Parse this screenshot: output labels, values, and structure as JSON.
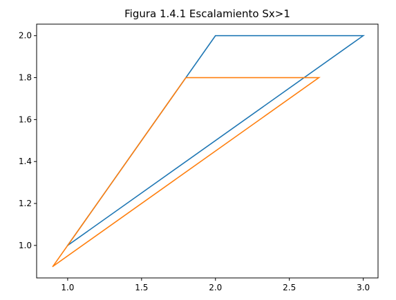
{
  "chart_data": {
    "type": "line",
    "title": "Figura 1.4.1 Escalamiento Sx>1",
    "xlabel": "",
    "ylabel": "",
    "xlim": [
      0.79,
      3.1
    ],
    "ylim": [
      0.845,
      2.055
    ],
    "xticks": [
      1.0,
      1.5,
      2.0,
      2.5,
      3.0
    ],
    "xtick_labels": [
      "1.0",
      "1.5",
      "2.0",
      "2.5",
      "3.0"
    ],
    "yticks": [
      1.0,
      1.2,
      1.4,
      1.6,
      1.8,
      2.0
    ],
    "ytick_labels": [
      "1.0",
      "1.2",
      "1.4",
      "1.6",
      "1.8",
      "2.0"
    ],
    "grid": false,
    "series": [
      {
        "color": "#1f77b4",
        "x": [
          1.0,
          2.0,
          3.0,
          1.0
        ],
        "y": [
          1.0,
          2.0,
          2.0,
          1.0
        ]
      },
      {
        "color": "#ff7f0e",
        "x": [
          0.9,
          1.8,
          2.7,
          0.9
        ],
        "y": [
          0.9,
          1.8,
          1.8,
          0.9
        ]
      }
    ]
  }
}
